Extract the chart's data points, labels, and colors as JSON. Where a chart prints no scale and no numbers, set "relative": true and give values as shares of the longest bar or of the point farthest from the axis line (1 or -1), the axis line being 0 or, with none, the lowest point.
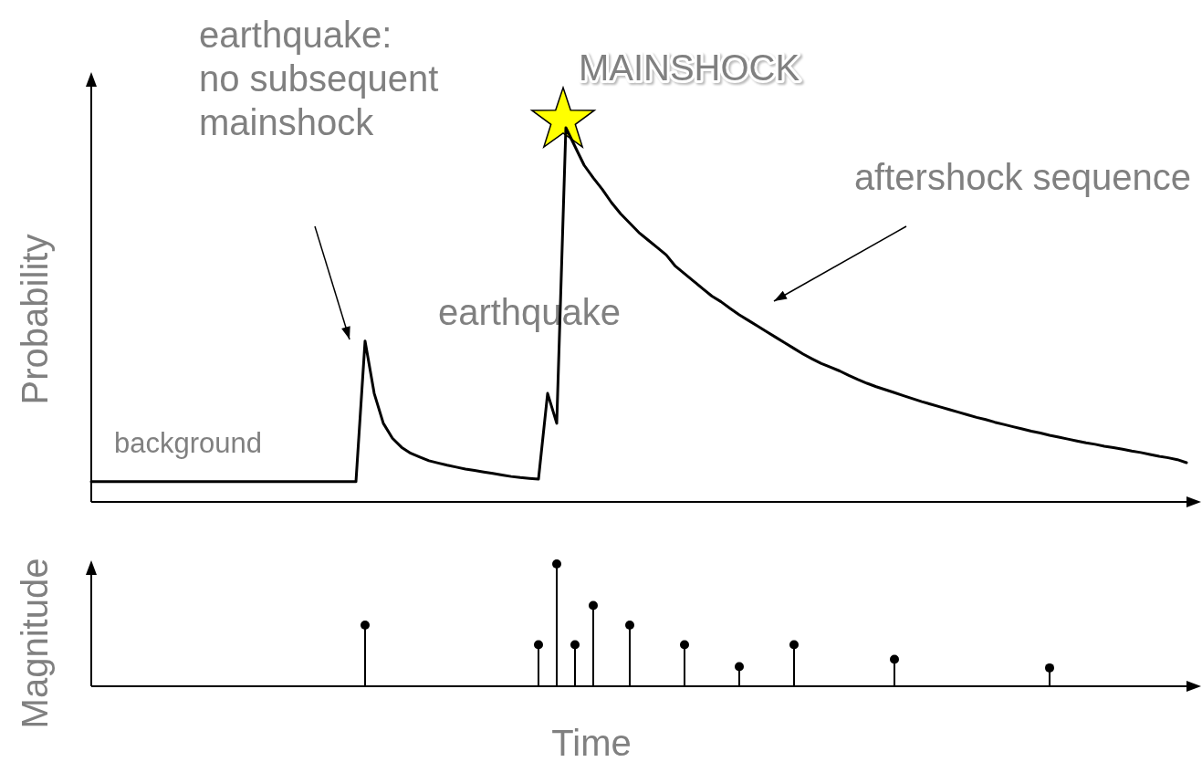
{
  "chart_data": [
    {
      "type": "line",
      "relative": true,
      "ylabel": "Probability",
      "categories": [
        null,
        null,
        null,
        null,
        null,
        null,
        null,
        null,
        null,
        null,
        null,
        null,
        null,
        null,
        null,
        null,
        null,
        null,
        null,
        null,
        null,
        null,
        null,
        null,
        null,
        null,
        null,
        null,
        null,
        null,
        null,
        null,
        null,
        null,
        null,
        null,
        null,
        null,
        null,
        null,
        null,
        null,
        null,
        null,
        null,
        null,
        null,
        null,
        null,
        null,
        null,
        null,
        null,
        null,
        null,
        null,
        null,
        null,
        null,
        null,
        null,
        null,
        null,
        null,
        null,
        null,
        null,
        null,
        null,
        null,
        null,
        null,
        null,
        null,
        null,
        null,
        null,
        null,
        null,
        null,
        null,
        null,
        null,
        null,
        null,
        null,
        null,
        null,
        null,
        null,
        null,
        null,
        null,
        null,
        null,
        null,
        null,
        null,
        null,
        null,
        null,
        null,
        null,
        null,
        null,
        null,
        null,
        null,
        null,
        null,
        null,
        null,
        null,
        null,
        null,
        null,
        null,
        null,
        null,
        null,
        null
      ],
      "series": [
        {
          "color": "#000000",
          "values": [
            0.054,
            0.054,
            0.054,
            0.054,
            0.054,
            0.054,
            0.054,
            0.054,
            0.054,
            0.054,
            0.054,
            0.054,
            0.054,
            0.054,
            0.054,
            0.054,
            0.054,
            0.054,
            0.054,
            0.054,
            0.054,
            0.054,
            0.054,
            0.054,
            0.054,
            0.054,
            0.054,
            0.054,
            0.054,
            0.054,
            0.43,
            0.29,
            0.21,
            0.17,
            0.146,
            0.13,
            0.12,
            0.11,
            0.104,
            0.098,
            0.093,
            0.088,
            0.084,
            0.08,
            0.076,
            0.072,
            0.068,
            0.065,
            0.063,
            0.061,
            0.29,
            0.21,
            1,
            0.95,
            0.9,
            0.866,
            0.835,
            0.8,
            0.77,
            0.745,
            0.72,
            0.7,
            0.68,
            0.66,
            0.63,
            0.61,
            0.59,
            0.57,
            0.55,
            0.535,
            0.517,
            0.5,
            0.485,
            0.47,
            0.455,
            0.44,
            0.425,
            0.41,
            0.395,
            0.382,
            0.37,
            0.36,
            0.35,
            0.338,
            0.327,
            0.317,
            0.308,
            0.3,
            0.292,
            0.284,
            0.276,
            0.268,
            0.261,
            0.254,
            0.247,
            0.24,
            0.233,
            0.226,
            0.22,
            0.213,
            0.207,
            0.201,
            0.195,
            0.189,
            0.184,
            0.178,
            0.173,
            0.168,
            0.163,
            0.158,
            0.154,
            0.149,
            0.145,
            0.141,
            0.136,
            0.132,
            0.127,
            0.122,
            0.118,
            0.113,
            0.105
          ]
        }
      ],
      "annotations": [
        "earthquake:\nno subsequent\nmainshock",
        "MAINSHOCK",
        "aftershock sequence",
        "earthquake",
        "background"
      ]
    },
    {
      "type": "lollipop",
      "relative": true,
      "ylabel": "Magnitude",
      "xlabel": "Time",
      "marker": "circle",
      "categories": [
        null,
        null,
        null,
        null,
        null,
        null,
        null,
        null,
        null,
        null,
        null,
        null,
        null,
        null,
        null,
        null,
        null,
        null,
        null,
        null,
        null,
        null,
        null,
        null,
        null,
        null,
        null,
        null,
        null,
        null,
        null,
        null,
        null,
        null,
        null,
        null,
        null,
        null,
        null,
        null,
        null,
        null,
        null,
        null,
        null,
        null,
        null,
        null,
        null,
        null,
        null,
        null,
        null,
        null,
        null,
        null,
        null,
        null,
        null,
        null,
        null,
        null,
        null,
        null,
        null,
        null,
        null,
        null,
        null,
        null,
        null,
        null,
        null,
        null,
        null,
        null,
        null,
        null,
        null,
        null,
        null,
        null,
        null,
        null,
        null,
        null,
        null,
        null,
        null,
        null,
        null,
        null,
        null,
        null,
        null,
        null,
        null,
        null,
        null,
        null,
        null,
        null,
        null,
        null,
        null,
        null,
        null,
        null,
        null,
        null,
        null,
        null,
        null,
        null,
        null,
        null,
        null,
        null,
        null,
        null,
        null
      ],
      "series": [
        {
          "color": "#000000",
          "values": [
            null,
            null,
            null,
            null,
            null,
            null,
            null,
            null,
            null,
            null,
            null,
            null,
            null,
            null,
            null,
            null,
            null,
            null,
            null,
            null,
            null,
            null,
            null,
            null,
            null,
            null,
            null,
            null,
            null,
            null,
            0.5,
            null,
            null,
            null,
            null,
            null,
            null,
            null,
            null,
            null,
            null,
            null,
            null,
            null,
            null,
            null,
            null,
            null,
            null,
            0.34,
            null,
            1,
            null,
            0.34,
            null,
            0.66,
            null,
            null,
            null,
            0.5,
            null,
            null,
            null,
            null,
            null,
            0.34,
            null,
            null,
            null,
            null,
            null,
            0.16,
            null,
            null,
            null,
            null,
            null,
            0.34,
            null,
            null,
            null,
            null,
            null,
            null,
            null,
            null,
            null,
            null,
            0.22,
            null,
            null,
            null,
            null,
            null,
            null,
            null,
            null,
            null,
            null,
            null,
            null,
            null,
            null,
            null,
            null,
            0.15,
            null,
            null,
            null,
            null,
            null,
            null,
            null,
            null,
            null,
            null,
            null,
            null,
            null,
            null,
            null
          ]
        }
      ]
    }
  ]
}
